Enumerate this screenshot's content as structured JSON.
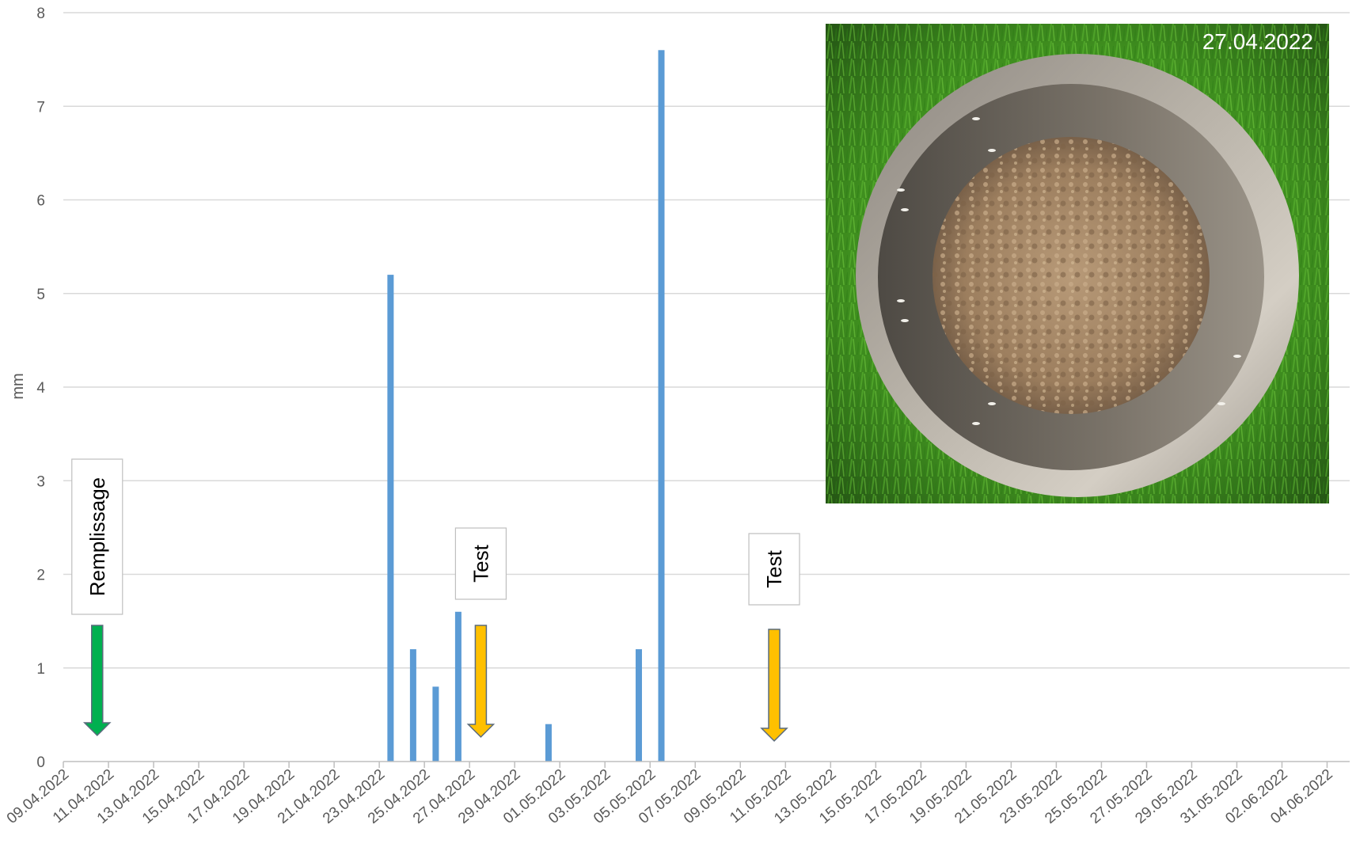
{
  "chart_data": {
    "type": "bar",
    "ylabel": "mm",
    "ylim": [
      0,
      8
    ],
    "yticks": [
      0,
      1,
      2,
      3,
      4,
      5,
      6,
      7,
      8
    ],
    "xlim": [
      "09.04.2022",
      "05.06.2022"
    ],
    "xtick_labels": [
      "09.04.2022",
      "11.04.2022",
      "13.04.2022",
      "15.04.2022",
      "17.04.2022",
      "19.04.2022",
      "21.04.2022",
      "23.04.2022",
      "25.04.2022",
      "27.04.2022",
      "29.04.2022",
      "01.05.2022",
      "03.05.2022",
      "05.05.2022",
      "07.05.2022",
      "09.05.2022",
      "11.05.2022",
      "13.05.2022",
      "15.05.2022",
      "17.05.2022",
      "19.05.2022",
      "21.05.2022",
      "23.05.2022",
      "25.05.2022",
      "27.05.2022",
      "29.05.2022",
      "31.05.2022",
      "02.06.2022",
      "04.06.2022"
    ],
    "grid": true,
    "bar_color": "#5b9bd5",
    "bars": [
      {
        "date": "23.04.2022",
        "value": 5.2
      },
      {
        "date": "24.04.2022",
        "value": 1.2
      },
      {
        "date": "25.04.2022",
        "value": 0.8
      },
      {
        "date": "26.04.2022",
        "value": 1.6
      },
      {
        "date": "30.04.2022",
        "value": 0.4
      },
      {
        "date": "04.05.2022",
        "value": 1.2
      },
      {
        "date": "05.05.2022",
        "value": 7.6
      }
    ],
    "annotations": [
      {
        "label": "Remplissage",
        "date": "10.04.2022",
        "arrow_color": "#00b050"
      },
      {
        "label": "Test",
        "date": "27.04.2022",
        "arrow_color": "#ffc000"
      },
      {
        "label": "Test",
        "date": "10.05.2022",
        "arrow_color": "#ffc000"
      }
    ]
  },
  "photo": {
    "date_label": "27.04.2022"
  }
}
